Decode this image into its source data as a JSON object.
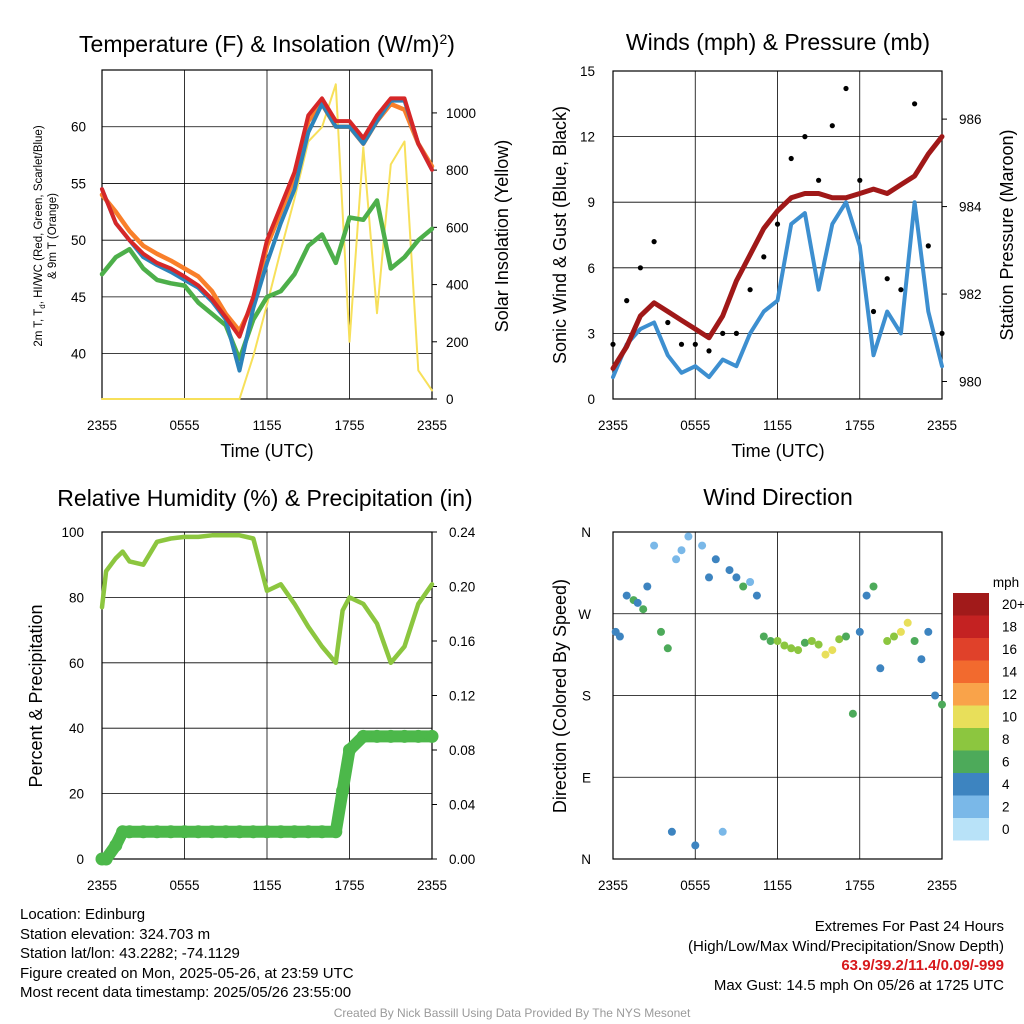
{
  "colors": {
    "temp": "#d62728",
    "dewpoint": "#2b83ba",
    "heatindex": "#4daf4a",
    "temp9m": "#f97f2a",
    "solar": "#f7e05a",
    "wind": "#3d8fd0",
    "gust": "#000000",
    "pressure": "#a01818",
    "rh": "#8cc63f",
    "precip": "#4cb84a"
  },
  "xaxis": {
    "label": "Time (UTC)",
    "ticks": [
      "2355",
      "0555",
      "1155",
      "1755",
      "2355"
    ]
  },
  "chart_data": [
    {
      "id": "temp_solar",
      "type": "line",
      "title": "Temperature (F) & Insolation (W/m2)",
      "ylabel": "2m T, Td, HI/WC (Red, Green, Scarlet/Blue) & 9m T (Orange)",
      "ylabel_line1": "2m T, T",
      "ylabel_sub": "d",
      "ylabel_line1_rest": ", HI/WC (Red, Green, Scarlet/Blue)",
      "ylabel_line2": "& 9m T (Orange)",
      "y2label": "Solar Insolation (Yellow)",
      "xlabel": "Time (UTC)",
      "ylim": [
        36,
        65
      ],
      "yticks": [
        40,
        45,
        50,
        55,
        60
      ],
      "y2lim": [
        0,
        1150
      ],
      "y2ticks": [
        0,
        200,
        400,
        600,
        800,
        1000
      ],
      "x": [
        0,
        1,
        2,
        3,
        4,
        5,
        6,
        7,
        8,
        9,
        10,
        11,
        12,
        13,
        14,
        15,
        16,
        17,
        18,
        19,
        20,
        21,
        22,
        23,
        24
      ],
      "series": [
        {
          "name": "2m T",
          "key": "temp",
          "values": [
            54.5,
            51.5,
            50,
            48.8,
            48,
            47.5,
            46.8,
            46,
            44.8,
            43.2,
            41.5,
            45,
            50,
            53,
            56,
            61,
            62.5,
            60.5,
            60.5,
            59,
            61,
            62.5,
            62.5,
            58.5,
            56.2
          ]
        },
        {
          "name": "9m T",
          "key": "temp9m",
          "values": [
            54,
            52.5,
            50.8,
            49.5,
            48.8,
            48.2,
            47.5,
            46.8,
            45.5,
            43.5,
            42,
            44.5,
            49.5,
            52.5,
            55.5,
            60.5,
            62,
            60,
            60,
            58.5,
            60.5,
            62,
            61.5,
            58.5,
            56.5
          ]
        },
        {
          "name": "Td",
          "key": "heatindex",
          "values": [
            47,
            48.5,
            49.2,
            47.5,
            46.5,
            46.2,
            46,
            44.5,
            43.5,
            42.5,
            39.5,
            43,
            45,
            45.5,
            47,
            49.5,
            50.5,
            48,
            52,
            51.8,
            53.5,
            47.5,
            48.5,
            50,
            51
          ]
        },
        {
          "name": "HI/WC",
          "key": "dewpoint",
          "values": [
            54.5,
            51.5,
            50,
            48.5,
            47.8,
            47.2,
            46.5,
            45.8,
            44.6,
            43,
            38.5,
            44,
            48,
            51.5,
            54.5,
            59.5,
            62,
            60,
            60,
            58.5,
            60.5,
            62.3,
            62.3,
            58.5,
            56.2
          ]
        },
        {
          "name": "Solar",
          "key": "solar",
          "axis": "y2",
          "values": [
            0,
            0,
            0,
            0,
            0,
            0,
            0,
            0,
            0,
            0,
            0,
            150,
            330,
            520,
            700,
            900,
            950,
            1100,
            200,
            880,
            300,
            820,
            900,
            100,
            30
          ]
        }
      ]
    },
    {
      "id": "wind_pressure",
      "type": "line",
      "title": "Winds (mph) & Pressure (mb)",
      "ylabel": "Sonic Wind & Gust (Blue, Black)",
      "y2label": "Station Pressure (Maroon)",
      "xlabel": "Time (UTC)",
      "ylim": [
        0,
        15
      ],
      "yticks": [
        0,
        3,
        6,
        9,
        12,
        15
      ],
      "y2lim": [
        979.6,
        987.1
      ],
      "y2ticks": [
        980,
        982,
        984,
        986
      ],
      "x": [
        0,
        1,
        2,
        3,
        4,
        5,
        6,
        7,
        8,
        9,
        10,
        11,
        12,
        13,
        14,
        15,
        16,
        17,
        18,
        19,
        20,
        21,
        22,
        23,
        24
      ],
      "series": [
        {
          "name": "Sonic Wind",
          "key": "wind",
          "values": [
            1,
            2.5,
            3.2,
            3.5,
            2,
            1.2,
            1.5,
            1,
            1.8,
            1.5,
            3,
            4,
            4.5,
            8,
            8.5,
            5,
            8,
            9,
            7,
            2,
            4,
            3,
            9,
            4,
            1.5
          ]
        },
        {
          "name": "Gust",
          "key": "gust",
          "values": [
            2.5,
            4.5,
            6,
            7.2,
            3.5,
            2.5,
            2.5,
            2.2,
            3,
            3,
            5,
            6.5,
            8,
            11,
            12,
            10,
            12.5,
            14.2,
            10,
            4,
            5.5,
            5,
            13.5,
            7,
            3
          ]
        },
        {
          "name": "Station Pressure",
          "key": "pressure",
          "axis": "y2",
          "values": [
            980.3,
            980.8,
            981.5,
            981.8,
            981.6,
            981.4,
            981.2,
            981.0,
            981.5,
            982.3,
            982.9,
            983.5,
            983.9,
            984.2,
            984.3,
            984.3,
            984.2,
            984.2,
            984.3,
            984.4,
            984.3,
            984.5,
            984.7,
            985.2,
            985.6
          ]
        }
      ]
    },
    {
      "id": "rh_precip",
      "type": "line",
      "title": "Relative Humidity (%) & Precipitation (in)",
      "ylabel": "Percent & Precipitation",
      "ylim": [
        0,
        100
      ],
      "yticks": [
        0,
        20,
        40,
        60,
        80,
        100
      ],
      "y2lim": [
        0,
        0.24
      ],
      "y2ticks": [
        "0.00",
        "0.04",
        "0.08",
        "0.12",
        "0.16",
        "0.20",
        "0.24"
      ],
      "x": [
        0,
        0.3,
        1,
        1.5,
        2,
        3,
        4,
        5,
        6,
        7,
        8,
        9,
        10,
        11,
        12,
        13,
        14,
        15,
        16,
        17,
        17.5,
        18,
        19,
        20,
        21,
        22,
        23,
        24
      ],
      "series": [
        {
          "name": "Relative Humidity",
          "key": "rh",
          "values": [
            77,
            88,
            92,
            94,
            91,
            90,
            97,
            98,
            98.5,
            98.5,
            99,
            99,
            99,
            98,
            82,
            84,
            78,
            71,
            65,
            60,
            76,
            80,
            78,
            72,
            60,
            65,
            78,
            84
          ]
        },
        {
          "name": "Precipitation",
          "key": "precip",
          "axis": "y2",
          "values": [
            0,
            0,
            0.01,
            0.02,
            0.02,
            0.02,
            0.02,
            0.02,
            0.02,
            0.02,
            0.02,
            0.02,
            0.02,
            0.02,
            0.02,
            0.02,
            0.02,
            0.02,
            0.02,
            0.02,
            0.05,
            0.08,
            0.09,
            0.09,
            0.09,
            0.09,
            0.09,
            0.09
          ]
        }
      ]
    },
    {
      "id": "wind_direction",
      "type": "scatter",
      "title": "Wind Direction",
      "ylabel": "Direction (Colored By Speed)",
      "ycats": [
        "N",
        "E",
        "S",
        "W",
        "N"
      ],
      "colorbar": {
        "unit": "mph",
        "labels": [
          "20+",
          "18",
          "16",
          "14",
          "12",
          "10",
          "8",
          "6",
          "4",
          "2",
          "0"
        ],
        "colors": [
          "#a11a1a",
          "#c42222",
          "#e0412a",
          "#f26a2e",
          "#f9a34a",
          "#e8df5a",
          "#8cc63f",
          "#4daa5a",
          "#3d84c0",
          "#7ab8e8",
          "#b8e2f8"
        ]
      },
      "x": [
        0.2,
        0.5,
        1,
        1.5,
        1.8,
        2.2,
        2.5,
        3,
        3.5,
        4,
        4.3,
        4.6,
        5,
        5.5,
        6,
        6.5,
        7,
        7.5,
        8,
        8.5,
        9,
        9.5,
        10,
        10.5,
        11,
        11.5,
        12,
        12.5,
        13,
        13.5,
        14,
        14.5,
        15,
        15.5,
        16,
        16.5,
        17,
        17.5,
        18,
        18.5,
        19,
        19.5,
        20,
        20.5,
        21,
        21.5,
        22,
        22.5,
        23,
        23.5,
        24
      ],
      "values": [
        250,
        245,
        290,
        285,
        282,
        275,
        300,
        345,
        250,
        232,
        30,
        330,
        340,
        355,
        15,
        345,
        310,
        330,
        30,
        318,
        310,
        300,
        305,
        290,
        245,
        240,
        240,
        235,
        232,
        230,
        238,
        240,
        236,
        225,
        230,
        242,
        245,
        160,
        250,
        290,
        300,
        210,
        240,
        245,
        250,
        260,
        240,
        220,
        250,
        180,
        170
      ],
      "speeds": [
        2,
        3,
        3,
        4,
        3,
        4,
        2,
        1,
        4,
        5,
        2,
        1,
        1,
        0,
        2,
        1,
        3,
        2,
        1,
        2,
        3,
        4,
        1,
        2,
        4,
        5,
        6,
        7,
        7,
        6,
        5,
        6,
        7,
        8,
        9,
        6,
        5,
        4,
        3,
        2,
        4,
        3,
        6,
        7,
        9,
        8,
        5,
        3,
        2,
        3,
        4
      ]
    }
  ],
  "footer": {
    "location": "Location: Edinburg",
    "elevation": "Station elevation: 324.703 m",
    "latlon": "Station lat/lon: 43.2282; -74.1129",
    "created": "Figure created on Mon, 2025-05-26, at 23:59 UTC",
    "recent": "Most recent data timestamp: 2025/05/26 23:55:00",
    "extremes_title": "Extremes For Past 24 Hours",
    "extremes_desc": "(High/Low/Max Wind/Precipitation/Snow Depth)",
    "extremes_values": "63.9/39.2/11.4/0.09/-999",
    "max_gust": "Max Gust: 14.5 mph On 05/26 at 1725 UTC",
    "credit": "Created By Nick Bassill Using Data Provided By The NYS Mesonet"
  }
}
